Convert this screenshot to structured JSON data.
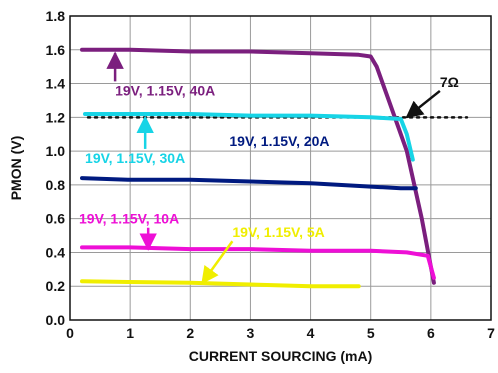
{
  "chart_data": {
    "type": "line",
    "title": "",
    "xlabel": "CURRENT SOURCING (mA)",
    "ylabel": "PMON (V)",
    "xlim": [
      0,
      7
    ],
    "ylim": [
      0,
      1.8
    ],
    "xticks": [
      "0",
      "1",
      "2",
      "3",
      "4",
      "5",
      "6",
      "7"
    ],
    "yticks": [
      "0.0",
      "0.2",
      "0.4",
      "0.6",
      "0.8",
      "1.0",
      "1.2",
      "1.4",
      "1.6",
      "1.8"
    ],
    "grid": true,
    "series": [
      {
        "name": "19V, 1.15V, 40A",
        "color": "#7b1f7e",
        "points": [
          [
            0.2,
            1.6
          ],
          [
            1.0,
            1.6
          ],
          [
            2.0,
            1.59
          ],
          [
            3.0,
            1.59
          ],
          [
            4.0,
            1.58
          ],
          [
            4.8,
            1.57
          ],
          [
            5.0,
            1.56
          ],
          [
            5.1,
            1.5
          ],
          [
            5.3,
            1.3
          ],
          [
            5.6,
            1.0
          ],
          [
            5.85,
            0.6
          ],
          [
            6.05,
            0.22
          ]
        ]
      },
      {
        "name": "19V, 1.15V, 30A",
        "color": "#17d4e6",
        "points": [
          [
            0.25,
            1.22
          ],
          [
            1.0,
            1.22
          ],
          [
            2.0,
            1.22
          ],
          [
            3.0,
            1.21
          ],
          [
            4.0,
            1.21
          ],
          [
            5.0,
            1.2
          ],
          [
            5.5,
            1.19
          ],
          [
            5.6,
            1.1
          ],
          [
            5.7,
            0.95
          ]
        ]
      },
      {
        "name": "19V, 1.15V, 20A",
        "color": "#001a80",
        "points": [
          [
            0.2,
            0.84
          ],
          [
            1.0,
            0.83
          ],
          [
            2.0,
            0.83
          ],
          [
            3.0,
            0.82
          ],
          [
            4.0,
            0.81
          ],
          [
            5.0,
            0.79
          ],
          [
            5.5,
            0.78
          ],
          [
            5.75,
            0.78
          ]
        ]
      },
      {
        "name": "19V, 1.15V, 10A",
        "color": "#ee0fd6",
        "points": [
          [
            0.2,
            0.43
          ],
          [
            1.0,
            0.43
          ],
          [
            2.0,
            0.42
          ],
          [
            3.0,
            0.42
          ],
          [
            4.0,
            0.41
          ],
          [
            5.0,
            0.41
          ],
          [
            5.6,
            0.4
          ],
          [
            5.95,
            0.38
          ],
          [
            6.05,
            0.25
          ]
        ]
      },
      {
        "name": "19V, 1.15V, 5A",
        "color": "#f0ee00",
        "points": [
          [
            0.2,
            0.23
          ],
          [
            1.0,
            0.225
          ],
          [
            2.0,
            0.22
          ],
          [
            3.0,
            0.21
          ],
          [
            4.0,
            0.2
          ],
          [
            4.8,
            0.2
          ]
        ]
      }
    ],
    "reference_line": {
      "name": "7Ω",
      "color": "#111111",
      "style": "dotted",
      "y": 1.2,
      "x": [
        0.3,
        6.6
      ]
    },
    "annotations": [
      {
        "text": "19V, 1.15V, 40A",
        "color": "#7b1f7e",
        "x": 0.75,
        "y": 1.33,
        "arrow_to": [
          0.75,
          1.58
        ]
      },
      {
        "text": "19V, 1.15V, 30A",
        "color": "#17d4e6",
        "x": 0.25,
        "y": 0.93,
        "arrow_to": [
          1.25,
          1.2
        ]
      },
      {
        "text": "19V, 1.15V, 20A",
        "color": "#001a80",
        "x": 2.65,
        "y": 1.03,
        "arrow_to": null
      },
      {
        "text": "19V, 1.15V, 10A",
        "color": "#ee0fd6",
        "x": 0.15,
        "y": 0.57,
        "arrow_to": [
          1.3,
          0.42
        ]
      },
      {
        "text": "19V, 1.15V, 5A",
        "color": "#f0ee00",
        "x": 2.7,
        "y": 0.49,
        "arrow_to": [
          2.2,
          0.22
        ]
      },
      {
        "text": "7Ω",
        "color": "#111111",
        "x": 6.15,
        "y": 1.38,
        "arrow_to": [
          5.6,
          1.2
        ]
      }
    ]
  }
}
